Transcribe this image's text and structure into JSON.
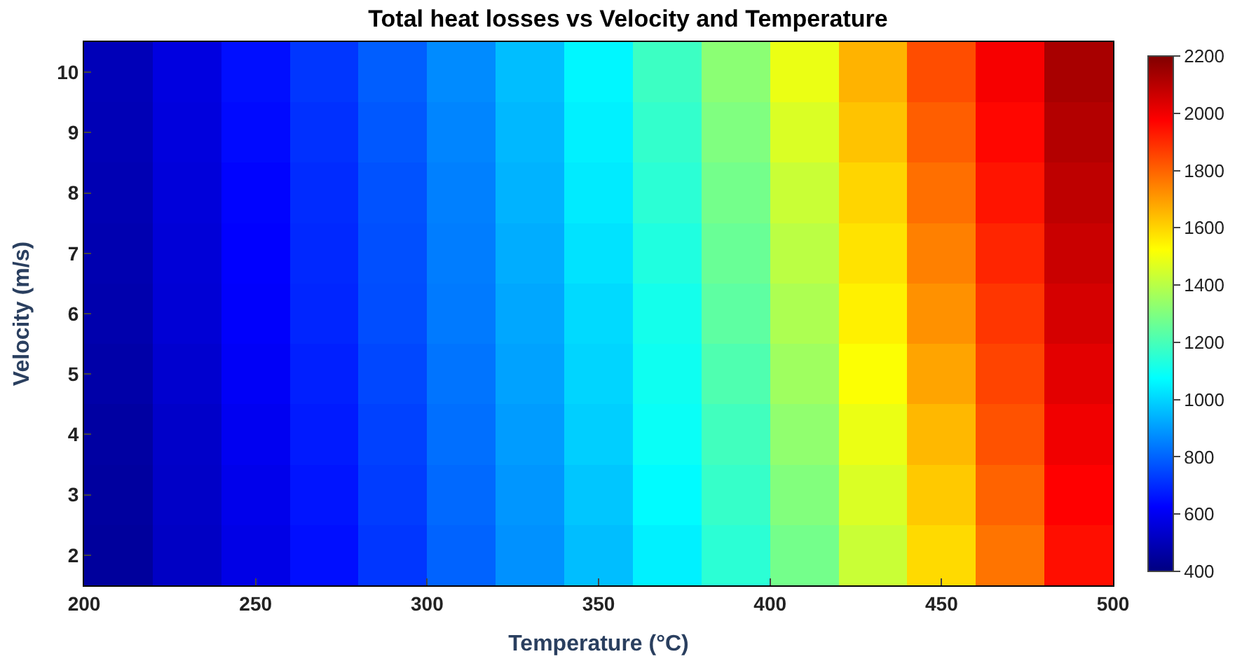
{
  "chart_data": {
    "type": "heatmap",
    "title": "Total heat losses vs Velocity and Temperature",
    "xlabel": "Temperature (°C)",
    "ylabel": "Velocity (m/s)",
    "x": [
      210,
      230,
      250,
      270,
      290,
      310,
      330,
      350,
      370,
      390,
      410,
      430,
      450,
      470,
      490
    ],
    "y_categories": [
      "10",
      "9",
      "8",
      "7",
      "6",
      "5",
      "4",
      "3",
      "2"
    ],
    "cells": [
      [
        500,
        570,
        650,
        720,
        790,
        870,
        960,
        1060,
        1180,
        1320,
        1490,
        1660,
        1840,
        1990,
        2130
      ],
      [
        495,
        565,
        640,
        710,
        780,
        860,
        950,
        1050,
        1165,
        1300,
        1460,
        1630,
        1810,
        1965,
        2110
      ],
      [
        490,
        560,
        630,
        700,
        770,
        850,
        940,
        1040,
        1150,
        1280,
        1430,
        1600,
        1780,
        1940,
        2090
      ],
      [
        485,
        555,
        625,
        695,
        765,
        845,
        930,
        1025,
        1130,
        1260,
        1405,
        1575,
        1750,
        1910,
        2070
      ],
      [
        480,
        550,
        620,
        690,
        760,
        840,
        920,
        1010,
        1110,
        1240,
        1380,
        1550,
        1720,
        1880,
        2050
      ],
      [
        470,
        540,
        610,
        680,
        750,
        830,
        910,
        1000,
        1100,
        1215,
        1355,
        1520,
        1685,
        1855,
        2025
      ],
      [
        460,
        530,
        600,
        670,
        740,
        820,
        900,
        990,
        1090,
        1190,
        1330,
        1490,
        1650,
        1830,
        2000
      ],
      [
        455,
        525,
        590,
        660,
        730,
        810,
        890,
        975,
        1070,
        1170,
        1305,
        1460,
        1620,
        1800,
        1975
      ],
      [
        450,
        520,
        580,
        650,
        720,
        800,
        880,
        960,
        1050,
        1150,
        1280,
        1430,
        1590,
        1770,
        1950
      ]
    ],
    "xlim": [
      200,
      500
    ],
    "xticks": [
      200,
      250,
      300,
      350,
      400,
      450,
      500
    ],
    "clim": [
      400,
      2200
    ],
    "cticks": [
      400,
      600,
      800,
      1000,
      1200,
      1400,
      1600,
      1800,
      2000,
      2200
    ]
  }
}
